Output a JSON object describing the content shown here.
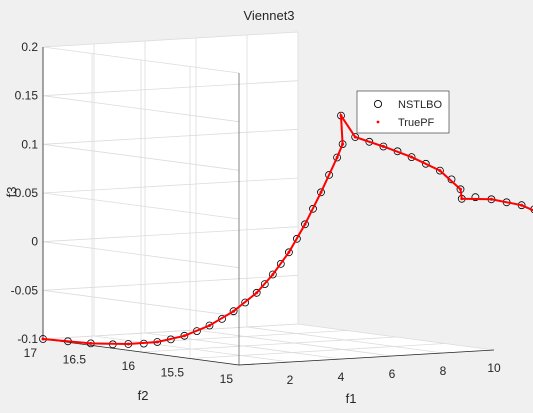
{
  "chart_data": {
    "type": "scatter3d",
    "title": "Viennet3",
    "xlabel": "f1",
    "ylabel": "f2",
    "zlabel": "f3",
    "xlim": [
      0,
      10
    ],
    "ylim": [
      15,
      17
    ],
    "zlim": [
      -0.1,
      0.2
    ],
    "xticks": [
      "2",
      "4",
      "6",
      "8",
      "10"
    ],
    "yticks": [
      "15",
      "15.5",
      "16",
      "16.5",
      "17"
    ],
    "zticks": [
      "-0.1",
      "-0.05",
      "0",
      "0.05",
      "0.1",
      "0.15",
      "0.2"
    ],
    "grid": true,
    "legend": {
      "placement": "inside-right",
      "entries": [
        "NSTLBO",
        "TruePF"
      ]
    },
    "series": [
      {
        "name": "NSTLBO",
        "marker": "circle",
        "color": "#000000",
        "points": [
          [
            0.0,
            17.0,
            -0.1
          ],
          [
            0.4,
            16.85,
            -0.101
          ],
          [
            0.8,
            16.72,
            -0.102
          ],
          [
            1.2,
            16.6,
            -0.102
          ],
          [
            1.5,
            16.52,
            -0.101
          ],
          [
            1.8,
            16.44,
            -0.1
          ],
          [
            2.1,
            16.38,
            -0.098
          ],
          [
            2.4,
            16.32,
            -0.095
          ],
          [
            2.7,
            16.26,
            -0.091
          ],
          [
            3.0,
            16.21,
            -0.086
          ],
          [
            3.3,
            16.16,
            -0.08
          ],
          [
            3.6,
            16.11,
            -0.073
          ],
          [
            3.9,
            16.07,
            -0.065
          ],
          [
            4.2,
            16.03,
            -0.056
          ],
          [
            4.5,
            15.99,
            -0.046
          ],
          [
            4.7,
            15.96,
            -0.037
          ],
          [
            4.9,
            15.93,
            -0.027
          ],
          [
            5.1,
            15.9,
            -0.016
          ],
          [
            5.3,
            15.87,
            -0.004
          ],
          [
            5.5,
            15.84,
            0.01
          ],
          [
            5.7,
            15.81,
            0.025
          ],
          [
            5.9,
            15.78,
            0.041
          ],
          [
            6.1,
            15.75,
            0.058
          ],
          [
            6.3,
            15.72,
            0.076
          ],
          [
            6.5,
            15.69,
            0.094
          ],
          [
            6.6,
            15.66,
            0.108
          ],
          [
            6.0,
            15.52,
            0.14
          ],
          [
            6.4,
            15.48,
            0.118
          ],
          [
            6.8,
            15.44,
            0.113
          ],
          [
            7.2,
            15.4,
            0.108
          ],
          [
            7.6,
            15.36,
            0.103
          ],
          [
            8.0,
            15.32,
            0.097
          ],
          [
            8.4,
            15.28,
            0.09
          ],
          [
            8.8,
            15.24,
            0.083
          ],
          [
            9.1,
            15.2,
            0.074
          ],
          [
            9.3,
            15.16,
            0.064
          ],
          [
            9.2,
            15.12,
            0.055
          ],
          [
            9.5,
            15.06,
            0.057
          ],
          [
            9.9,
            15.0,
            0.055
          ],
          [
            10.3,
            14.95,
            0.052
          ],
          [
            10.7,
            14.9,
            0.049
          ],
          [
            11.0,
            14.85,
            0.045
          ],
          [
            11.2,
            14.82,
            0.04
          ],
          [
            11.0,
            14.8,
            0.036
          ]
        ]
      },
      {
        "name": "TruePF",
        "marker": "dot",
        "color": "#ff0000",
        "points": [
          [
            0.0,
            17.0,
            -0.1
          ],
          [
            0.8,
            16.72,
            -0.102
          ],
          [
            1.5,
            16.52,
            -0.101
          ],
          [
            2.1,
            16.38,
            -0.098
          ],
          [
            2.7,
            16.26,
            -0.091
          ],
          [
            3.3,
            16.16,
            -0.08
          ],
          [
            3.9,
            16.07,
            -0.065
          ],
          [
            4.5,
            15.99,
            -0.046
          ],
          [
            4.9,
            15.93,
            -0.027
          ],
          [
            5.3,
            15.87,
            -0.004
          ],
          [
            5.7,
            15.81,
            0.025
          ],
          [
            6.1,
            15.75,
            0.058
          ],
          [
            6.5,
            15.69,
            0.094
          ],
          [
            6.6,
            15.66,
            0.108
          ],
          [
            6.0,
            15.52,
            0.14
          ],
          [
            6.4,
            15.48,
            0.118
          ],
          [
            7.2,
            15.4,
            0.108
          ],
          [
            8.0,
            15.32,
            0.097
          ],
          [
            8.8,
            15.24,
            0.083
          ],
          [
            9.3,
            15.16,
            0.064
          ],
          [
            9.2,
            15.12,
            0.055
          ],
          [
            9.9,
            15.0,
            0.055
          ],
          [
            10.7,
            14.9,
            0.049
          ],
          [
            11.2,
            14.82,
            0.04
          ],
          [
            11.0,
            14.8,
            0.036
          ]
        ]
      }
    ]
  }
}
